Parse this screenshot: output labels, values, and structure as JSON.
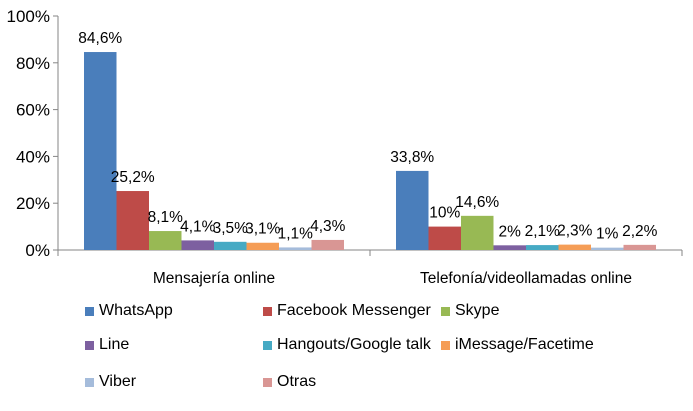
{
  "chart_data": {
    "type": "bar",
    "categories": [
      "Mensajería online",
      "Telefonía/videollamadas online"
    ],
    "series": [
      {
        "name": "WhatsApp",
        "color": "#4A7EBB",
        "values": [
          84.6,
          33.8
        ],
        "labels": [
          "84,6%",
          "33,8%"
        ]
      },
      {
        "name": "Facebook Messenger",
        "color": "#BE4B48",
        "values": [
          25.2,
          10
        ],
        "labels": [
          "25,2%",
          "10%"
        ]
      },
      {
        "name": "Skype",
        "color": "#98B954",
        "values": [
          8.1,
          14.6
        ],
        "labels": [
          "8,1%",
          "14,6%"
        ]
      },
      {
        "name": "Line",
        "color": "#7D60A0",
        "values": [
          4.1,
          2
        ],
        "labels": [
          "4,1%",
          "2%"
        ]
      },
      {
        "name": "Hangouts/Google talk",
        "color": "#46AAC4",
        "values": [
          3.5,
          2.1
        ],
        "labels": [
          "3,5%",
          "2,1%"
        ]
      },
      {
        "name": "iMessage/Facetime",
        "color": "#F59D56",
        "values": [
          3.1,
          2.3
        ],
        "labels": [
          "3,1%",
          "2,3%"
        ]
      },
      {
        "name": "Viber",
        "color": "#A5BCDB",
        "values": [
          1.1,
          1
        ],
        "labels": [
          "1,1%",
          "1%"
        ]
      },
      {
        "name": "Otras",
        "color": "#D99694",
        "values": [
          4.3,
          2.2
        ],
        "labels": [
          "4,3%",
          "2,2%"
        ]
      }
    ],
    "ylim": [
      0,
      100
    ],
    "yticks": [
      "0%",
      "20%",
      "40%",
      "60%",
      "80%",
      "100%"
    ],
    "grid": false,
    "legend_position": "bottom"
  }
}
